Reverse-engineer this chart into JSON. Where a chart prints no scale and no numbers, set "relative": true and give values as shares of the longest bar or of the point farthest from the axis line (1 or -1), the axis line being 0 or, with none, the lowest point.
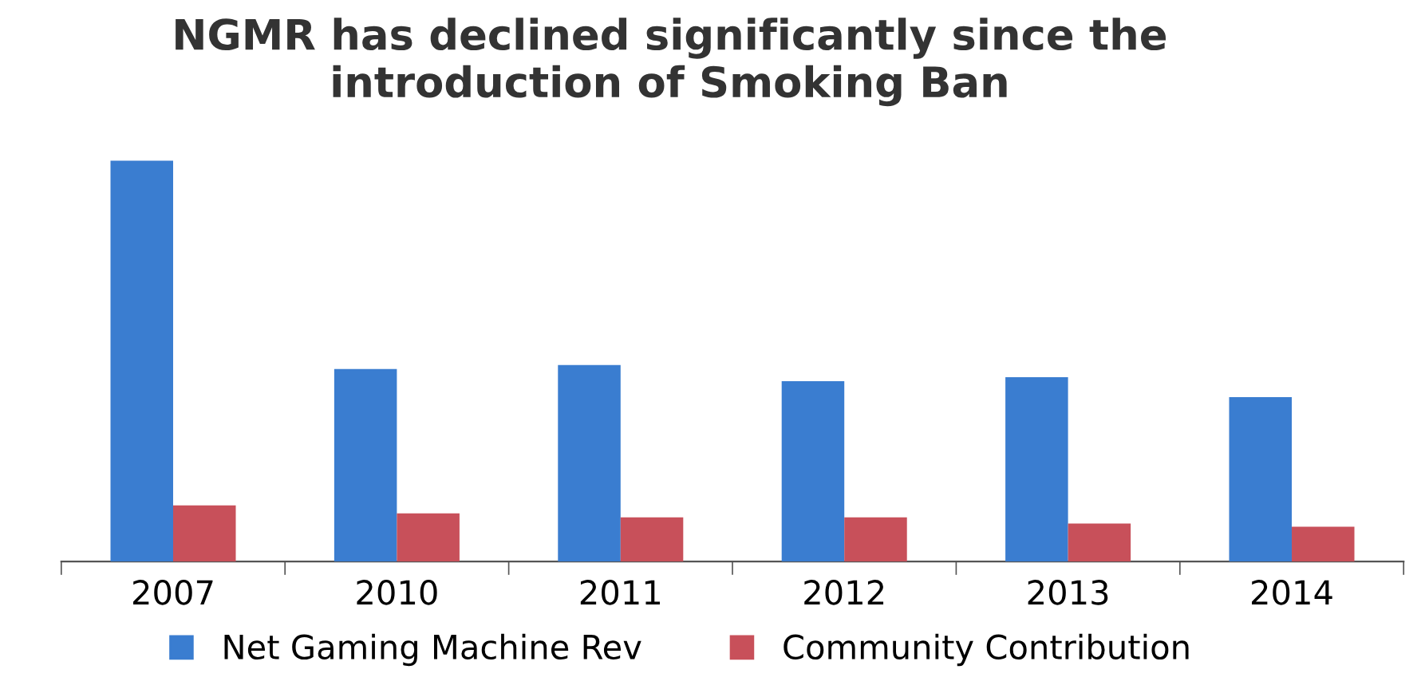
{
  "chart_data": {
    "type": "bar",
    "title": "NGMR has declined significantly since the\nintroduction of Smoking Ban",
    "relative": true,
    "categories": [
      "2007",
      "2010",
      "2011",
      "2012",
      "2013",
      "2014"
    ],
    "series": [
      {
        "name": "Net Gaming Machine Rev",
        "color": "#3a7dd0",
        "values": [
          1,
          0.48,
          0.49,
          0.45,
          0.46,
          0.41
        ]
      },
      {
        "name": "Community Contribution",
        "color": "#c8505a",
        "values": [
          0.14,
          0.12,
          0.11,
          0.11,
          0.095,
          0.087
        ]
      }
    ],
    "legend": "bottom"
  }
}
